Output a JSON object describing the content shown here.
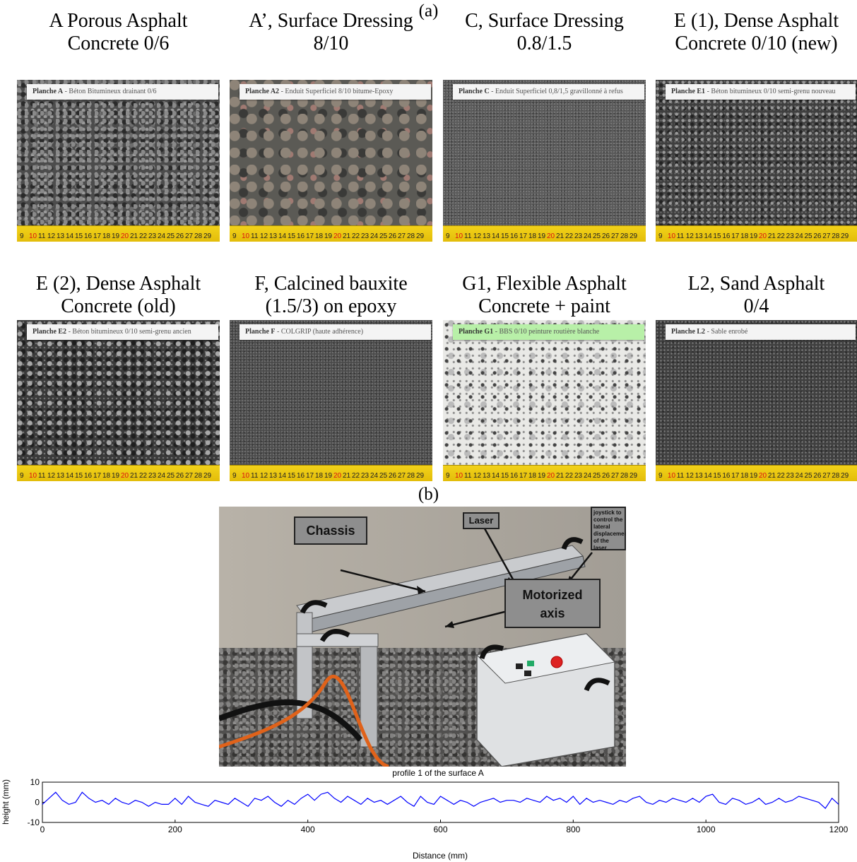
{
  "figure": {
    "label_a": "(a)",
    "label_b": "(b)"
  },
  "samples": [
    {
      "caption_line1": "A Porous Asphalt",
      "caption_line2": "Concrete 0/6",
      "plate_id": "Planche A",
      "plate_text": " - Béton Bitumineux drainant 0/6",
      "texture": "gravel"
    },
    {
      "caption_line1": "A’, Surface Dressing",
      "caption_line2": "8/10",
      "plate_id": "Planche A2",
      "plate_text": " - Enduit Superficiel 8/10 bitume-Epoxy",
      "texture": "chips"
    },
    {
      "caption_line1": "C, Surface Dressing",
      "caption_line2": "0.8/1.5",
      "plate_id": "Planche C",
      "plate_text": " - Enduit Superficiel 0,8/1,5 gravillonné à refus",
      "texture": "fine"
    },
    {
      "caption_line1": "E (1), Dense Asphalt",
      "caption_line2": "Concrete 0/10 (new)",
      "plate_id": "Planche E1",
      "plate_text": " - Béton bitumineux 0/10 semi-grenu nouveau",
      "texture": "medium"
    },
    {
      "caption_line1": "E (2), Dense Asphalt",
      "caption_line2": "Concrete (old)",
      "plate_id": "Planche E2",
      "plate_text": " - Béton bitumineux 0/10 semi-grenu ancien",
      "texture": "old"
    },
    {
      "caption_line1": "F, Calcined bauxite",
      "caption_line2": "(1.5/3) on epoxy",
      "plate_id": "Planche F",
      "plate_text": " - COLGRIP (haute adhérence)",
      "texture": "bauxite"
    },
    {
      "caption_line1": "G1, Flexible Asphalt",
      "caption_line2": "Concrete + paint",
      "plate_id": "Planche G1",
      "plate_text": " - BBS 0/10 peinture routière blanche",
      "texture": "paint"
    },
    {
      "caption_line1": "L2, Sand Asphalt",
      "caption_line2": "0/4",
      "plate_id": "Planche L2",
      "plate_text": " - Sable enrobé",
      "texture": "sand"
    }
  ],
  "ruler_ticks": [
    "9",
    "10",
    "11",
    "12",
    "13",
    "14",
    "15",
    "16",
    "17",
    "18",
    "19",
    "20",
    "21",
    "22",
    "23",
    "24",
    "25",
    "26",
    "27",
    "28",
    "29"
  ],
  "device_photo": {
    "callout_chassis": "Chassis",
    "callout_laser": "Laser",
    "callout_joystick": "joystick to control the lateral displacement of the laser",
    "callout_axis_line1": "Motorized",
    "callout_axis_line2": "axis"
  },
  "chart_data": {
    "type": "line",
    "title": "profile 1 of the surface A",
    "xlabel": "Distance (mm)",
    "ylabel": "height (mm)",
    "xlim": [
      0,
      1200
    ],
    "ylim": [
      -10,
      10
    ],
    "xticks": [
      0,
      200,
      400,
      600,
      800,
      1000,
      1200
    ],
    "yticks": [
      10,
      0,
      -10
    ],
    "series": [
      {
        "color": "#0000ff",
        "x": [
          0,
          10,
          20,
          30,
          40,
          50,
          60,
          70,
          80,
          90,
          100,
          110,
          120,
          130,
          140,
          150,
          160,
          170,
          180,
          190,
          200,
          210,
          220,
          230,
          240,
          250,
          260,
          270,
          280,
          290,
          300,
          310,
          320,
          330,
          340,
          350,
          360,
          370,
          380,
          390,
          400,
          410,
          420,
          430,
          440,
          450,
          460,
          470,
          480,
          490,
          500,
          510,
          520,
          530,
          540,
          550,
          560,
          570,
          580,
          590,
          600,
          610,
          620,
          630,
          640,
          650,
          660,
          670,
          680,
          690,
          700,
          710,
          720,
          730,
          740,
          750,
          760,
          770,
          780,
          790,
          800,
          810,
          820,
          830,
          840,
          850,
          860,
          870,
          880,
          890,
          900,
          910,
          920,
          930,
          940,
          950,
          960,
          970,
          980,
          990,
          1000,
          1010,
          1020,
          1030,
          1040,
          1050,
          1060,
          1070,
          1080,
          1090,
          1100,
          1110,
          1120,
          1130,
          1140,
          1150,
          1160,
          1170,
          1180,
          1190,
          1200
        ],
        "y": [
          -1,
          2,
          5,
          1,
          -1,
          0,
          5,
          2,
          0,
          1,
          -1,
          2,
          0,
          -1,
          1,
          0,
          -2,
          0,
          -1,
          -1,
          2,
          -1,
          3,
          0,
          -1,
          -2,
          1,
          0,
          -1,
          2,
          0,
          -2,
          2,
          1,
          3,
          0,
          -2,
          1,
          -1,
          2,
          4,
          1,
          4,
          5,
          2,
          0,
          3,
          1,
          -1,
          2,
          0,
          1,
          -1,
          1,
          3,
          0,
          -2,
          3,
          0,
          -1,
          3,
          1,
          -1,
          1,
          0,
          -2,
          0,
          1,
          2,
          0,
          1,
          1,
          0,
          2,
          1,
          0,
          3,
          1,
          2,
          0,
          3,
          -1,
          2,
          0,
          1,
          0,
          -1,
          1,
          0,
          2,
          3,
          0,
          -1,
          1,
          0,
          2,
          1,
          0,
          2,
          0,
          3,
          4,
          0,
          -1,
          2,
          1,
          -1,
          0,
          2,
          -1,
          0,
          2,
          0,
          1,
          3,
          2,
          1,
          0,
          -3,
          2,
          -1
        ]
      }
    ]
  }
}
